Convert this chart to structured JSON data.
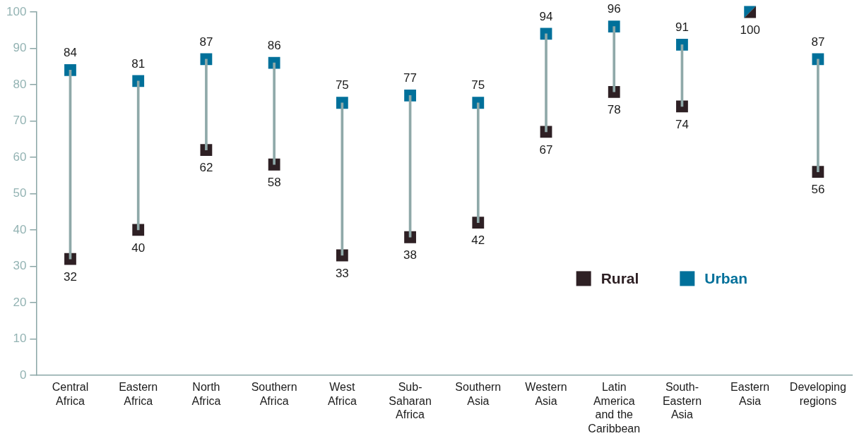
{
  "chart_data": {
    "type": "scatter",
    "categories": [
      "Central Africa",
      "Eastern Africa",
      "North Africa",
      "Southern Africa",
      "West Africa",
      "Sub-Saharan Africa",
      "Southern Asia",
      "Western Asia",
      "Latin America and the Caribbean",
      "South-Eastern Asia",
      "Eastern Asia",
      "Developing regions"
    ],
    "series": [
      {
        "type": "bar",
        "color": "#8fa9a9",
        "base": [
          32,
          40,
          62,
          58,
          33,
          38,
          42,
          67,
          78,
          74,
          100,
          56
        ],
        "values": [
          52,
          41,
          25,
          28,
          42,
          39,
          33,
          27,
          18,
          17,
          0,
          31
        ]
      },
      {
        "name": "Rural",
        "color": "#2e2024",
        "values": [
          32,
          40,
          62,
          58,
          33,
          38,
          42,
          67,
          78,
          74,
          100,
          56
        ],
        "value_labels": [
          "32",
          "40",
          "62",
          "58",
          "33",
          "38",
          "42",
          "67",
          "78",
          "74",
          "100",
          "56"
        ]
      },
      {
        "name": "Urban",
        "color": "#00709a",
        "values": [
          84,
          81,
          87,
          86,
          75,
          77,
          75,
          94,
          96,
          91,
          100,
          87
        ],
        "value_labels": [
          "84",
          "81",
          "87",
          "86",
          "75",
          "77",
          "75",
          "94",
          "96",
          "91",
          null,
          "87"
        ]
      }
    ],
    "ylim": [
      0,
      100
    ],
    "yticks": [
      0,
      10,
      20,
      30,
      40,
      50,
      60,
      70,
      80,
      90,
      100
    ],
    "marker": "square",
    "legend": "bottom right"
  }
}
